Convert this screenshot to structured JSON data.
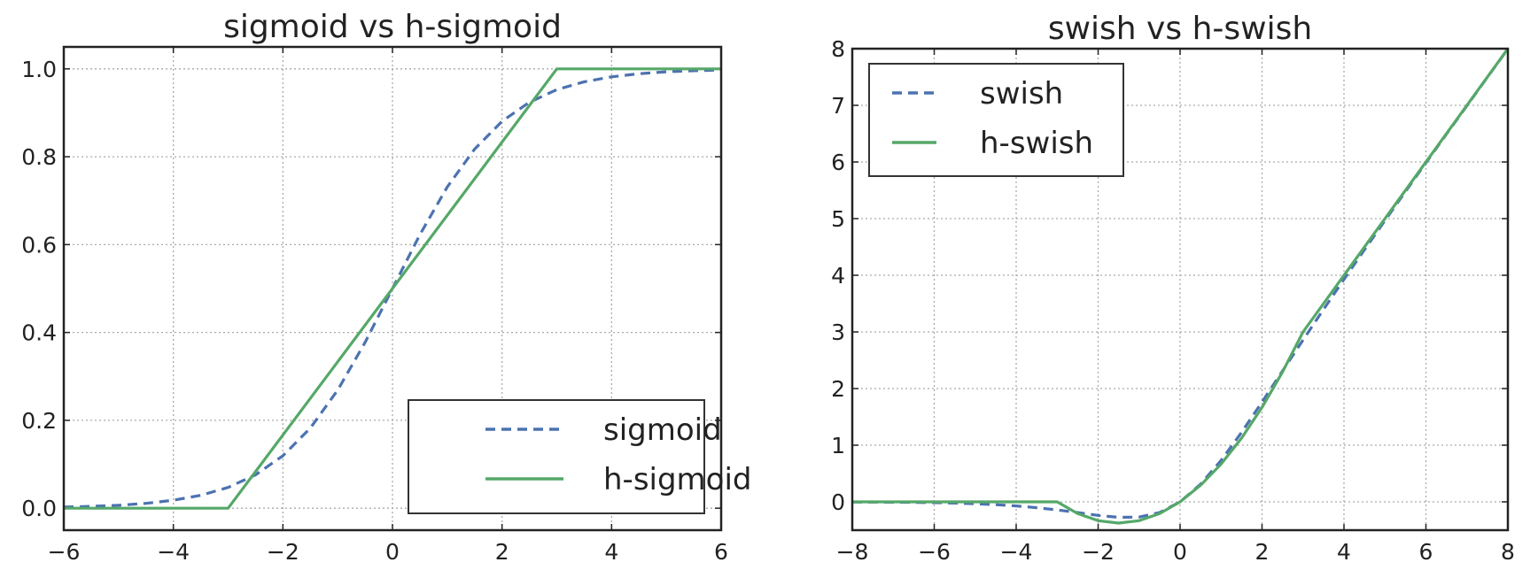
{
  "chart_data": [
    {
      "type": "line",
      "title": "sigmoid vs h-sigmoid",
      "xlabel": "",
      "ylabel": "",
      "xlim": [
        -6,
        6
      ],
      "ylim": [
        -0.05,
        1.05
      ],
      "xticks": [
        -6,
        -4,
        -2,
        0,
        2,
        4,
        6
      ],
      "xtick_labels": [
        "−6",
        "−4",
        "−2",
        "0",
        "2",
        "4",
        "6"
      ],
      "yticks": [
        0.0,
        0.2,
        0.4,
        0.6,
        0.8,
        1.0
      ],
      "ytick_labels": [
        "0.0",
        "0.2",
        "0.4",
        "0.6",
        "0.8",
        "1.0"
      ],
      "grid": true,
      "legend_position": "lower-right",
      "series": [
        {
          "name": "sigmoid",
          "style": "dashed",
          "color": "#4c72b0",
          "x": [
            -6,
            -5.5,
            -5,
            -4.5,
            -4,
            -3.5,
            -3,
            -2.5,
            -2,
            -1.5,
            -1,
            -0.5,
            0,
            0.5,
            1,
            1.5,
            2,
            2.5,
            3,
            3.5,
            4,
            4.5,
            5,
            5.5,
            6
          ],
          "y": [
            0.0025,
            0.0041,
            0.0067,
            0.011,
            0.018,
            0.0293,
            0.0474,
            0.0759,
            0.1192,
            0.1824,
            0.2689,
            0.3775,
            0.5,
            0.6225,
            0.7311,
            0.8176,
            0.8808,
            0.9241,
            0.9526,
            0.9707,
            0.982,
            0.989,
            0.9933,
            0.9959,
            0.9975
          ]
        },
        {
          "name": "h-sigmoid",
          "style": "solid",
          "color": "#55a868",
          "x": [
            -6,
            -3,
            3,
            6
          ],
          "y": [
            0,
            0,
            1,
            1
          ]
        }
      ]
    },
    {
      "type": "line",
      "title": "swish vs h-swish",
      "xlabel": "",
      "ylabel": "",
      "xlim": [
        -8,
        8
      ],
      "ylim": [
        -0.5,
        8
      ],
      "xticks": [
        -8,
        -6,
        -4,
        -2,
        0,
        2,
        4,
        6,
        8
      ],
      "xtick_labels": [
        "−8",
        "−6",
        "−4",
        "−2",
        "0",
        "2",
        "4",
        "6",
        "8"
      ],
      "yticks": [
        0,
        1,
        2,
        3,
        4,
        5,
        6,
        7,
        8
      ],
      "ytick_labels": [
        "0",
        "1",
        "2",
        "3",
        "4",
        "5",
        "6",
        "7",
        "8"
      ],
      "grid": true,
      "legend_position": "upper-left",
      "series": [
        {
          "name": "swish",
          "style": "dashed",
          "color": "#4c72b0",
          "x": [
            -8,
            -7.5,
            -7,
            -6.5,
            -6,
            -5.5,
            -5,
            -4.5,
            -4,
            -3.5,
            -3,
            -2.5,
            -2,
            -1.5,
            -1,
            -0.5,
            0,
            0.5,
            1,
            1.5,
            2,
            2.5,
            3,
            3.5,
            4,
            4.5,
            5,
            5.5,
            6,
            6.5,
            7,
            7.5,
            8
          ],
          "y": [
            -0.0027,
            -0.0041,
            -0.0064,
            -0.0098,
            -0.0148,
            -0.0226,
            -0.0335,
            -0.0494,
            -0.0719,
            -0.1026,
            -0.1423,
            -0.1897,
            -0.2384,
            -0.2736,
            -0.2689,
            -0.1888,
            0,
            0.3112,
            0.7311,
            1.2264,
            1.7616,
            2.3103,
            2.8577,
            3.3974,
            3.9281,
            4.4506,
            4.9665,
            5.4774,
            5.9852,
            6.4902,
            6.9936,
            7.4959,
            7.9973
          ]
        },
        {
          "name": "h-swish",
          "style": "solid",
          "color": "#55a868",
          "x": [
            -8,
            -3,
            -2.5,
            -2,
            -1.5,
            -1,
            -0.5,
            0,
            0.5,
            1,
            1.5,
            2,
            2.5,
            3,
            8
          ],
          "y": [
            0,
            0,
            -0.2083,
            -0.3333,
            -0.375,
            -0.3333,
            -0.2083,
            0,
            0.2917,
            0.6667,
            1.125,
            1.6667,
            2.2917,
            3,
            8
          ]
        }
      ]
    }
  ]
}
